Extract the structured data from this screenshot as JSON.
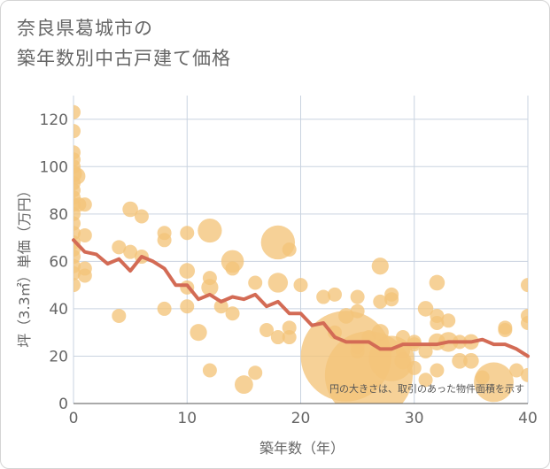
{
  "title_lines": [
    "奈良県葛城市の",
    "築年数別中古戸建て価格"
  ],
  "chart_data": {
    "type": "scatter",
    "title": "奈良県葛城市の築年数別中古戸建て価格",
    "xlabel": "築年数（年）",
    "ylabel": "坪（3.3㎡）単価（万円）",
    "xlim": [
      0,
      40
    ],
    "ylim": [
      0,
      130
    ],
    "x_ticks": [
      0,
      10,
      20,
      30,
      40
    ],
    "y_ticks": [
      0,
      20,
      40,
      60,
      80,
      100,
      120
    ],
    "grid": true,
    "note": "円の大きさは、取引のあった物件面積を示す",
    "colors": {
      "bubble": "#f3c47a",
      "line": "#d36b55",
      "grid": "#c9d3e0"
    },
    "series": [
      {
        "type": "bubble",
        "points": [
          {
            "x": 0,
            "y": 123,
            "s": 1
          },
          {
            "x": 0,
            "y": 115,
            "s": 1
          },
          {
            "x": 0,
            "y": 106,
            "s": 1
          },
          {
            "x": 0,
            "y": 103,
            "s": 1
          },
          {
            "x": 0,
            "y": 100,
            "s": 1
          },
          {
            "x": 0,
            "y": 97,
            "s": 1.2
          },
          {
            "x": 0,
            "y": 93,
            "s": 1
          },
          {
            "x": 0,
            "y": 90,
            "s": 1
          },
          {
            "x": 0,
            "y": 87,
            "s": 1
          },
          {
            "x": 0,
            "y": 84,
            "s": 1
          },
          {
            "x": 0,
            "y": 80,
            "s": 1
          },
          {
            "x": 0,
            "y": 76,
            "s": 1
          },
          {
            "x": 0,
            "y": 72,
            "s": 1
          },
          {
            "x": 0,
            "y": 68,
            "s": 1
          },
          {
            "x": 0,
            "y": 65,
            "s": 1
          },
          {
            "x": 0,
            "y": 62,
            "s": 1
          },
          {
            "x": 0,
            "y": 58,
            "s": 1
          },
          {
            "x": 0,
            "y": 55,
            "s": 1
          },
          {
            "x": 0,
            "y": 50,
            "s": 1
          },
          {
            "x": 0.3,
            "y": 96,
            "s": 1.2
          },
          {
            "x": 0.5,
            "y": 84,
            "s": 1
          },
          {
            "x": 1,
            "y": 84,
            "s": 1
          },
          {
            "x": 1,
            "y": 71,
            "s": 1
          },
          {
            "x": 1,
            "y": 57,
            "s": 1
          },
          {
            "x": 1,
            "y": 54,
            "s": 1
          },
          {
            "x": 4,
            "y": 66,
            "s": 1
          },
          {
            "x": 4,
            "y": 37,
            "s": 1
          },
          {
            "x": 5,
            "y": 82,
            "s": 1.1
          },
          {
            "x": 5,
            "y": 64,
            "s": 1
          },
          {
            "x": 6,
            "y": 79,
            "s": 1
          },
          {
            "x": 6,
            "y": 62,
            "s": 1
          },
          {
            "x": 8,
            "y": 72,
            "s": 1
          },
          {
            "x": 8,
            "y": 69,
            "s": 1
          },
          {
            "x": 8,
            "y": 40,
            "s": 1
          },
          {
            "x": 10,
            "y": 72,
            "s": 1
          },
          {
            "x": 10,
            "y": 56,
            "s": 1.1
          },
          {
            "x": 10,
            "y": 49,
            "s": 1
          },
          {
            "x": 10,
            "y": 41,
            "s": 1
          },
          {
            "x": 11,
            "y": 30,
            "s": 1.2
          },
          {
            "x": 12,
            "y": 73,
            "s": 1.7
          },
          {
            "x": 12,
            "y": 53,
            "s": 1
          },
          {
            "x": 12,
            "y": 49,
            "s": 1.2
          },
          {
            "x": 12,
            "y": 14,
            "s": 1
          },
          {
            "x": 13,
            "y": 41,
            "s": 1
          },
          {
            "x": 14,
            "y": 60,
            "s": 1.6
          },
          {
            "x": 14,
            "y": 57,
            "s": 1
          },
          {
            "x": 14,
            "y": 38,
            "s": 1
          },
          {
            "x": 15,
            "y": 8,
            "s": 1.3
          },
          {
            "x": 16,
            "y": 51,
            "s": 1
          },
          {
            "x": 16,
            "y": 13,
            "s": 1
          },
          {
            "x": 17,
            "y": 31,
            "s": 1
          },
          {
            "x": 18,
            "y": 68,
            "s": 2.4
          },
          {
            "x": 18,
            "y": 51,
            "s": 1.4
          },
          {
            "x": 18,
            "y": 28,
            "s": 1
          },
          {
            "x": 19,
            "y": 65,
            "s": 1
          },
          {
            "x": 19,
            "y": 32,
            "s": 1
          },
          {
            "x": 19,
            "y": 28,
            "s": 1
          },
          {
            "x": 20,
            "y": 50,
            "s": 1
          },
          {
            "x": 22,
            "y": 45,
            "s": 1
          },
          {
            "x": 23,
            "y": 46,
            "s": 1
          },
          {
            "x": 23,
            "y": 30,
            "s": 1
          },
          {
            "x": 24,
            "y": 20,
            "s": 6.4
          },
          {
            "x": 24,
            "y": 37,
            "s": 1.1
          },
          {
            "x": 25,
            "y": 45,
            "s": 1
          },
          {
            "x": 25,
            "y": 39,
            "s": 1
          },
          {
            "x": 25,
            "y": 24,
            "s": 1
          },
          {
            "x": 25,
            "y": 22,
            "s": 1
          },
          {
            "x": 26,
            "y": 12,
            "s": 6.2
          },
          {
            "x": 26,
            "y": 28,
            "s": 1
          },
          {
            "x": 27,
            "y": 58,
            "s": 1.2
          },
          {
            "x": 27,
            "y": 43,
            "s": 1
          },
          {
            "x": 27,
            "y": 30,
            "s": 1.2
          },
          {
            "x": 28,
            "y": 46,
            "s": 1
          },
          {
            "x": 28,
            "y": 44,
            "s": 1
          },
          {
            "x": 28,
            "y": 19,
            "s": 3.2
          },
          {
            "x": 29,
            "y": 28,
            "s": 1
          },
          {
            "x": 29,
            "y": 22,
            "s": 1
          },
          {
            "x": 29,
            "y": 18,
            "s": 1.2
          },
          {
            "x": 30,
            "y": 26,
            "s": 1
          },
          {
            "x": 30,
            "y": 25,
            "s": 1
          },
          {
            "x": 30,
            "y": 15,
            "s": 1
          },
          {
            "x": 31,
            "y": 40,
            "s": 1.1
          },
          {
            "x": 31,
            "y": 22,
            "s": 1
          },
          {
            "x": 31,
            "y": 10,
            "s": 1
          },
          {
            "x": 32,
            "y": 51,
            "s": 1.1
          },
          {
            "x": 32,
            "y": 37,
            "s": 1
          },
          {
            "x": 32,
            "y": 34,
            "s": 1
          },
          {
            "x": 32,
            "y": 26,
            "s": 1.2
          },
          {
            "x": 32,
            "y": 14,
            "s": 1
          },
          {
            "x": 33,
            "y": 35,
            "s": 1
          },
          {
            "x": 33,
            "y": 26,
            "s": 1.4
          },
          {
            "x": 34,
            "y": 26,
            "s": 1
          },
          {
            "x": 34,
            "y": 18,
            "s": 1.1
          },
          {
            "x": 35,
            "y": 26,
            "s": 1.1
          },
          {
            "x": 35,
            "y": 18,
            "s": 1.1
          },
          {
            "x": 36,
            "y": 11,
            "s": 1
          },
          {
            "x": 37,
            "y": 9,
            "s": 2.8
          },
          {
            "x": 38,
            "y": 32,
            "s": 1
          },
          {
            "x": 38,
            "y": 31,
            "s": 1
          },
          {
            "x": 39,
            "y": 14,
            "s": 1
          },
          {
            "x": 40,
            "y": 50,
            "s": 1
          },
          {
            "x": 40,
            "y": 37,
            "s": 1
          },
          {
            "x": 40,
            "y": 34,
            "s": 1
          },
          {
            "x": 40,
            "y": 12,
            "s": 1
          }
        ]
      },
      {
        "type": "line",
        "x": [
          0,
          1,
          2,
          3,
          4,
          5,
          6,
          7,
          8,
          9,
          10,
          11,
          12,
          13,
          14,
          15,
          16,
          17,
          18,
          19,
          20,
          21,
          22,
          23,
          24,
          25,
          26,
          27,
          28,
          29,
          30,
          31,
          32,
          33,
          34,
          35,
          36,
          37,
          38,
          39,
          40
        ],
        "values": [
          69,
          64,
          63,
          59,
          61,
          56,
          62,
          60,
          57,
          50,
          50,
          44,
          46,
          43,
          45,
          44,
          46,
          41,
          43,
          38,
          38,
          33,
          34,
          28,
          26,
          26,
          26,
          23,
          23,
          25,
          25,
          25,
          25,
          26,
          26,
          26,
          27,
          25,
          25,
          23,
          20
        ]
      }
    ]
  }
}
